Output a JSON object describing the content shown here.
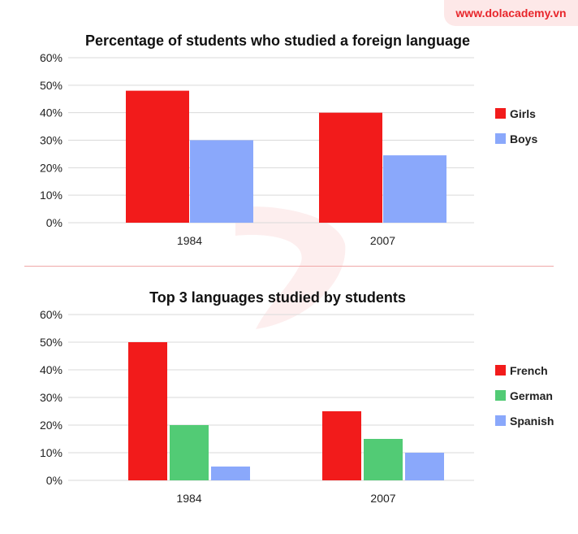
{
  "brand": {
    "label": "www.dolacademy.vn",
    "accent": "#e8262b"
  },
  "chart_data": [
    {
      "type": "bar",
      "title": "Percentage of students who studied a foreign language",
      "categories": [
        "1984",
        "2007"
      ],
      "ylim": [
        0,
        60
      ],
      "yticks": [
        "0%",
        "10%",
        "20%",
        "30%",
        "40%",
        "50%",
        "60%"
      ],
      "grid": true,
      "legend_position": "right",
      "series": [
        {
          "name": "Girls",
          "color": "#f21b1b",
          "values": [
            48,
            40
          ]
        },
        {
          "name": "Boys",
          "color": "#8aa8fb",
          "values": [
            30,
            24.5
          ]
        }
      ]
    },
    {
      "type": "bar",
      "title": "Top 3 languages studied by students",
      "categories": [
        "1984",
        "2007"
      ],
      "ylim": [
        0,
        60
      ],
      "yticks": [
        "0%",
        "10%",
        "20%",
        "30%",
        "40%",
        "50%",
        "60%"
      ],
      "grid": true,
      "legend_position": "right",
      "series": [
        {
          "name": "French",
          "color": "#f21b1b",
          "values": [
            50,
            25
          ]
        },
        {
          "name": "German",
          "color": "#52cb75",
          "values": [
            20,
            15
          ]
        },
        {
          "name": "Spanish",
          "color": "#8aa8fb",
          "values": [
            5,
            10
          ]
        }
      ]
    }
  ]
}
